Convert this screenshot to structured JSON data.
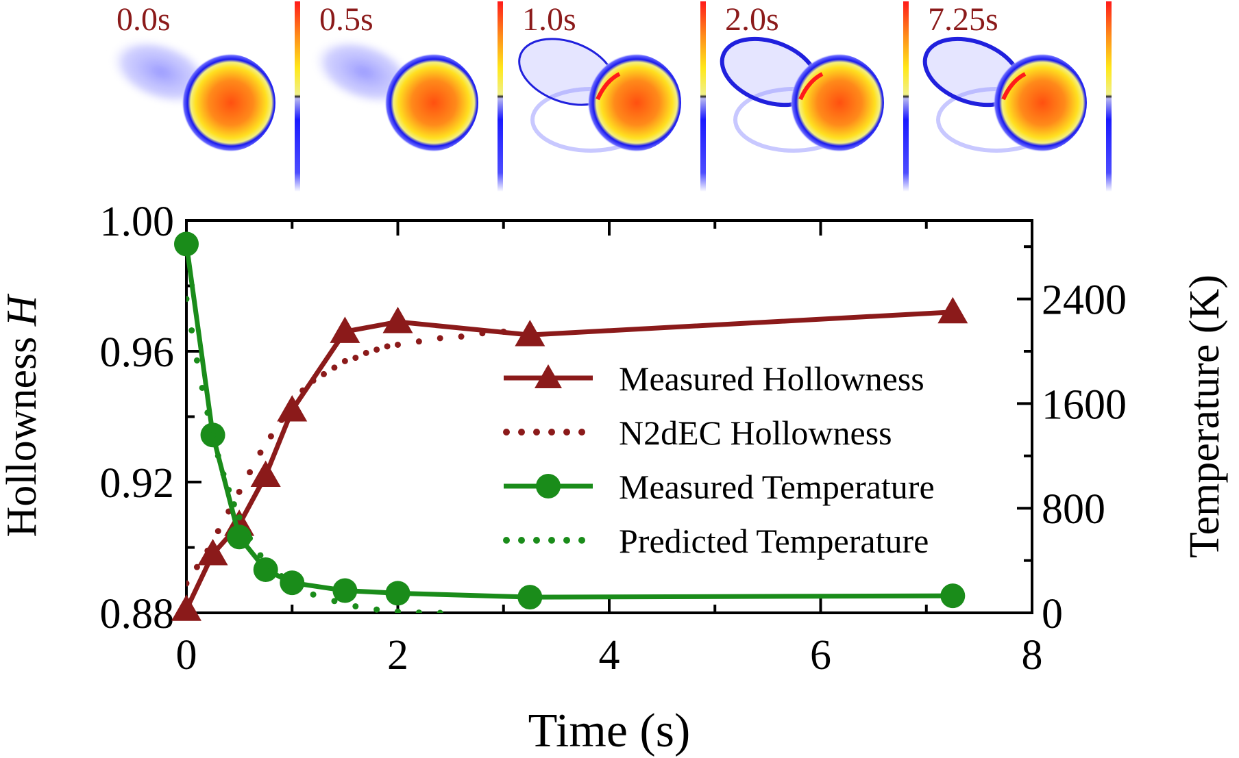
{
  "panels": {
    "labels": [
      "0.0s",
      "0.5s",
      "1.0s",
      "2.0s",
      "7.25s"
    ],
    "label_color": "#8b1a1a"
  },
  "chart_data": {
    "type": "line",
    "xlabel": "Time (s)",
    "ylabel_left_prefix": "Hollowness ",
    "ylabel_left_symbol": "H",
    "ylabel_right": "Temperature (K)",
    "xlim": [
      0,
      8
    ],
    "ylim_left": [
      0.88,
      1.0
    ],
    "ylim_right": [
      0,
      3000
    ],
    "x_ticks": [
      "0",
      "2",
      "4",
      "6",
      "8"
    ],
    "y_left_ticks": [
      "0.88",
      "0.92",
      "0.96",
      "1.00"
    ],
    "y_right_ticks": [
      "0",
      "800",
      "1600",
      "2400"
    ],
    "series": [
      {
        "name": "Measured Hollowness",
        "axis": "left",
        "style": "solid-triangle",
        "color": "#8b1a1a",
        "x": [
          0,
          0.25,
          0.5,
          0.75,
          1.0,
          1.5,
          2.0,
          3.25,
          7.25
        ],
        "y": [
          0.881,
          0.898,
          0.907,
          0.922,
          0.942,
          0.966,
          0.969,
          0.965,
          0.972
        ]
      },
      {
        "name": "N2dEC Hollowness",
        "axis": "left",
        "style": "dotted",
        "color": "#8b1a1a",
        "x": [
          0,
          0.1,
          0.2,
          0.3,
          0.4,
          0.5,
          0.6,
          0.7,
          0.8,
          0.9,
          1.0,
          1.1,
          1.2,
          1.3,
          1.4,
          1.5,
          1.6,
          1.7,
          1.8,
          1.9,
          2.0,
          2.2,
          2.4,
          2.6,
          2.8,
          3.0
        ],
        "y": [
          0.889,
          0.894,
          0.899,
          0.905,
          0.911,
          0.917,
          0.923,
          0.929,
          0.934,
          0.939,
          0.944,
          0.948,
          0.951,
          0.953,
          0.955,
          0.957,
          0.958,
          0.9595,
          0.9605,
          0.9615,
          0.962,
          0.963,
          0.964,
          0.9645,
          0.9655,
          0.966
        ]
      },
      {
        "name": "Measured Temperature",
        "axis": "right",
        "style": "solid-circle",
        "color": "#1a8c1a",
        "x": [
          0,
          0.25,
          0.5,
          0.75,
          1.0,
          1.5,
          2.0,
          3.25,
          7.25
        ],
        "y": [
          2820,
          1360,
          580,
          330,
          230,
          170,
          150,
          120,
          130
        ]
      },
      {
        "name": "Predicted Temperature",
        "axis": "right",
        "style": "dotted",
        "color": "#1a8c1a",
        "x": [
          0,
          0.05,
          0.1,
          0.15,
          0.2,
          0.25,
          0.3,
          0.35,
          0.4,
          0.45,
          0.5,
          0.6,
          0.7,
          0.8,
          0.9,
          1.0,
          1.2,
          1.4,
          1.6,
          1.8,
          2.0,
          2.2,
          2.4
        ],
        "y": [
          2400,
          2160,
          1930,
          1720,
          1530,
          1360,
          1200,
          1060,
          940,
          830,
          730,
          570,
          440,
          350,
          280,
          220,
          140,
          90,
          50,
          25,
          10,
          2,
          0
        ]
      }
    ],
    "legend_position": "center-right"
  }
}
